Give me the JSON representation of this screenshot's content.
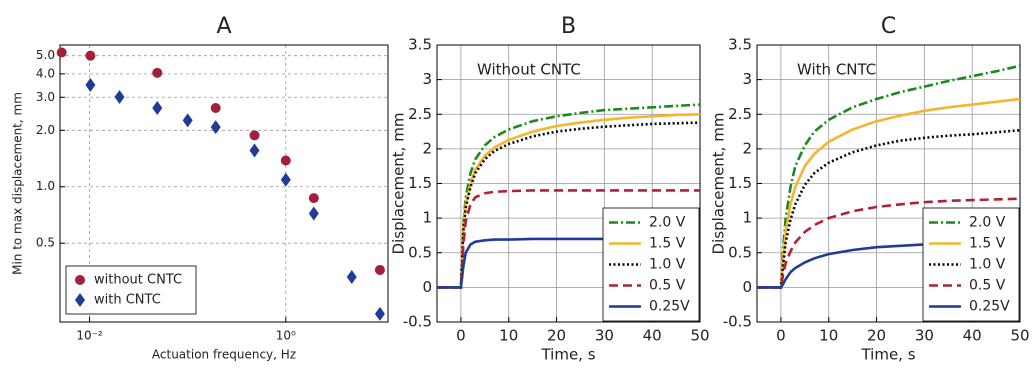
{
  "chart_data": [
    {
      "type": "scatter",
      "title": "A",
      "xlabel": "Actuation frequency, Hz",
      "ylabel": "Min to max displacement, mm",
      "xscale": "log",
      "yscale": "log",
      "xlim": [
        0.005,
        11
      ],
      "ylim": [
        0.19,
        5.7
      ],
      "xticks": [
        {
          "value": 0.01,
          "label": "10⁻²"
        },
        {
          "value": 1,
          "label": "10⁰"
        }
      ],
      "yticks": [
        0.5,
        {
          "value": 1,
          "label": "1.0"
        },
        {
          "value": 2,
          "label": "2.0"
        },
        {
          "value": 3,
          "label": "3.0"
        },
        {
          "value": 4,
          "label": "4.0"
        },
        {
          "value": 5,
          "label": "5.0"
        }
      ],
      "grid": true,
      "legend": "lower left",
      "series": [
        {
          "name": "without CNTC",
          "color": "#a3203a",
          "marker": "circle",
          "x": [
            0.0052,
            0.0102,
            0.049,
            0.193,
            0.48,
            1.0,
            1.93,
            9.1
          ],
          "values": [
            5.2,
            5.0,
            4.05,
            2.63,
            1.88,
            1.38,
            0.87,
            0.36
          ]
        },
        {
          "name": "with CNTC",
          "color": "#1f3c99",
          "marker": "diamond",
          "x": [
            0.0102,
            0.0202,
            0.049,
            0.1,
            0.193,
            0.48,
            1.0,
            1.93,
            4.7,
            9.1
          ],
          "values": [
            3.49,
            3.01,
            2.63,
            2.26,
            2.08,
            1.56,
            1.09,
            0.72,
            0.33,
            0.21
          ]
        }
      ]
    },
    {
      "type": "line",
      "title": "B",
      "annotation": "Without CNTC",
      "xlabel": "Time, s",
      "ylabel": "Displacement, mm",
      "xlim": [
        -5,
        50
      ],
      "ylim": [
        -0.5,
        3.5
      ],
      "xticks": [
        0,
        10,
        20,
        30,
        40,
        50
      ],
      "yticks": [
        -0.5,
        0,
        0.5,
        1,
        1.5,
        2,
        2.5,
        3,
        3.5
      ],
      "grid": true,
      "legend": "lower right",
      "x": [
        -5,
        0,
        0.5,
        1,
        2,
        3,
        5,
        7,
        10,
        15,
        20,
        25,
        30,
        35,
        40,
        45,
        50
      ],
      "series": [
        {
          "name": "2.0 V",
          "color": "#1a8a1a",
          "linestyle": "dashdot",
          "values": [
            0,
            0,
            0.9,
            1.3,
            1.65,
            1.85,
            2.05,
            2.17,
            2.28,
            2.4,
            2.47,
            2.52,
            2.56,
            2.58,
            2.6,
            2.62,
            2.64
          ]
        },
        {
          "name": "1.5 V",
          "color": "#f5b52e",
          "linestyle": "solid",
          "values": [
            0,
            0,
            0.85,
            1.2,
            1.5,
            1.7,
            1.9,
            2.02,
            2.13,
            2.25,
            2.33,
            2.38,
            2.42,
            2.45,
            2.47,
            2.49,
            2.5
          ]
        },
        {
          "name": "1.0 V",
          "color": "#000000",
          "linestyle": "dotted",
          "values": [
            0,
            0,
            0.8,
            1.15,
            1.45,
            1.65,
            1.85,
            1.97,
            2.07,
            2.18,
            2.25,
            2.29,
            2.32,
            2.34,
            2.36,
            2.37,
            2.38
          ]
        },
        {
          "name": "0.5 V",
          "color": "#b22234",
          "linestyle": "dashed",
          "values": [
            0,
            0,
            0.6,
            0.95,
            1.2,
            1.3,
            1.36,
            1.38,
            1.39,
            1.4,
            1.4,
            1.4,
            1.4,
            1.4,
            1.4,
            1.4,
            1.4
          ]
        },
        {
          "name": "0.25V",
          "color": "#1f3c99",
          "linestyle": "solid",
          "values": [
            0,
            0,
            0.3,
            0.5,
            0.62,
            0.66,
            0.68,
            0.69,
            0.69,
            0.7,
            0.7,
            0.7,
            0.7,
            0.7,
            0.7,
            0.7,
            0.7
          ]
        }
      ]
    },
    {
      "type": "line",
      "title": "C",
      "annotation": "With CNTC",
      "xlabel": "Time, s",
      "ylabel": "Displacement, mm",
      "xlim": [
        -5,
        50
      ],
      "ylim": [
        -0.5,
        3.5
      ],
      "xticks": [
        0,
        10,
        20,
        30,
        40,
        50
      ],
      "yticks": [
        -0.5,
        0,
        0.5,
        1,
        1.5,
        2,
        2.5,
        3,
        3.5
      ],
      "grid": true,
      "legend": "lower right",
      "x": [
        -5,
        0,
        0.5,
        1,
        2,
        3,
        5,
        7,
        10,
        15,
        20,
        25,
        30,
        35,
        40,
        45,
        50
      ],
      "series": [
        {
          "name": "2.0 V",
          "color": "#1a8a1a",
          "linestyle": "dashdot",
          "values": [
            0,
            0,
            0.6,
            1.0,
            1.45,
            1.75,
            2.05,
            2.25,
            2.42,
            2.6,
            2.72,
            2.82,
            2.9,
            2.98,
            3.05,
            3.12,
            3.2
          ]
        },
        {
          "name": "1.5 V",
          "color": "#f5b52e",
          "linestyle": "solid",
          "values": [
            0,
            0,
            0.45,
            0.8,
            1.2,
            1.45,
            1.75,
            1.93,
            2.1,
            2.28,
            2.4,
            2.48,
            2.55,
            2.6,
            2.64,
            2.68,
            2.72
          ]
        },
        {
          "name": "1.0 V",
          "color": "#000000",
          "linestyle": "dotted",
          "values": [
            0,
            0,
            0.35,
            0.65,
            0.98,
            1.2,
            1.48,
            1.65,
            1.8,
            1.95,
            2.05,
            2.12,
            2.16,
            2.19,
            2.21,
            2.24,
            2.27
          ]
        },
        {
          "name": "0.5 V",
          "color": "#b22234",
          "linestyle": "dashed",
          "values": [
            0,
            0,
            0.2,
            0.35,
            0.52,
            0.65,
            0.8,
            0.9,
            1.0,
            1.1,
            1.16,
            1.2,
            1.23,
            1.25,
            1.26,
            1.27,
            1.28
          ]
        },
        {
          "name": "0.25V",
          "color": "#1f3c99",
          "linestyle": "solid",
          "values": [
            0,
            0,
            0.05,
            0.12,
            0.22,
            0.28,
            0.36,
            0.42,
            0.48,
            0.54,
            0.58,
            0.6,
            0.62,
            0.63,
            0.64,
            0.65,
            0.66
          ]
        }
      ]
    }
  ]
}
